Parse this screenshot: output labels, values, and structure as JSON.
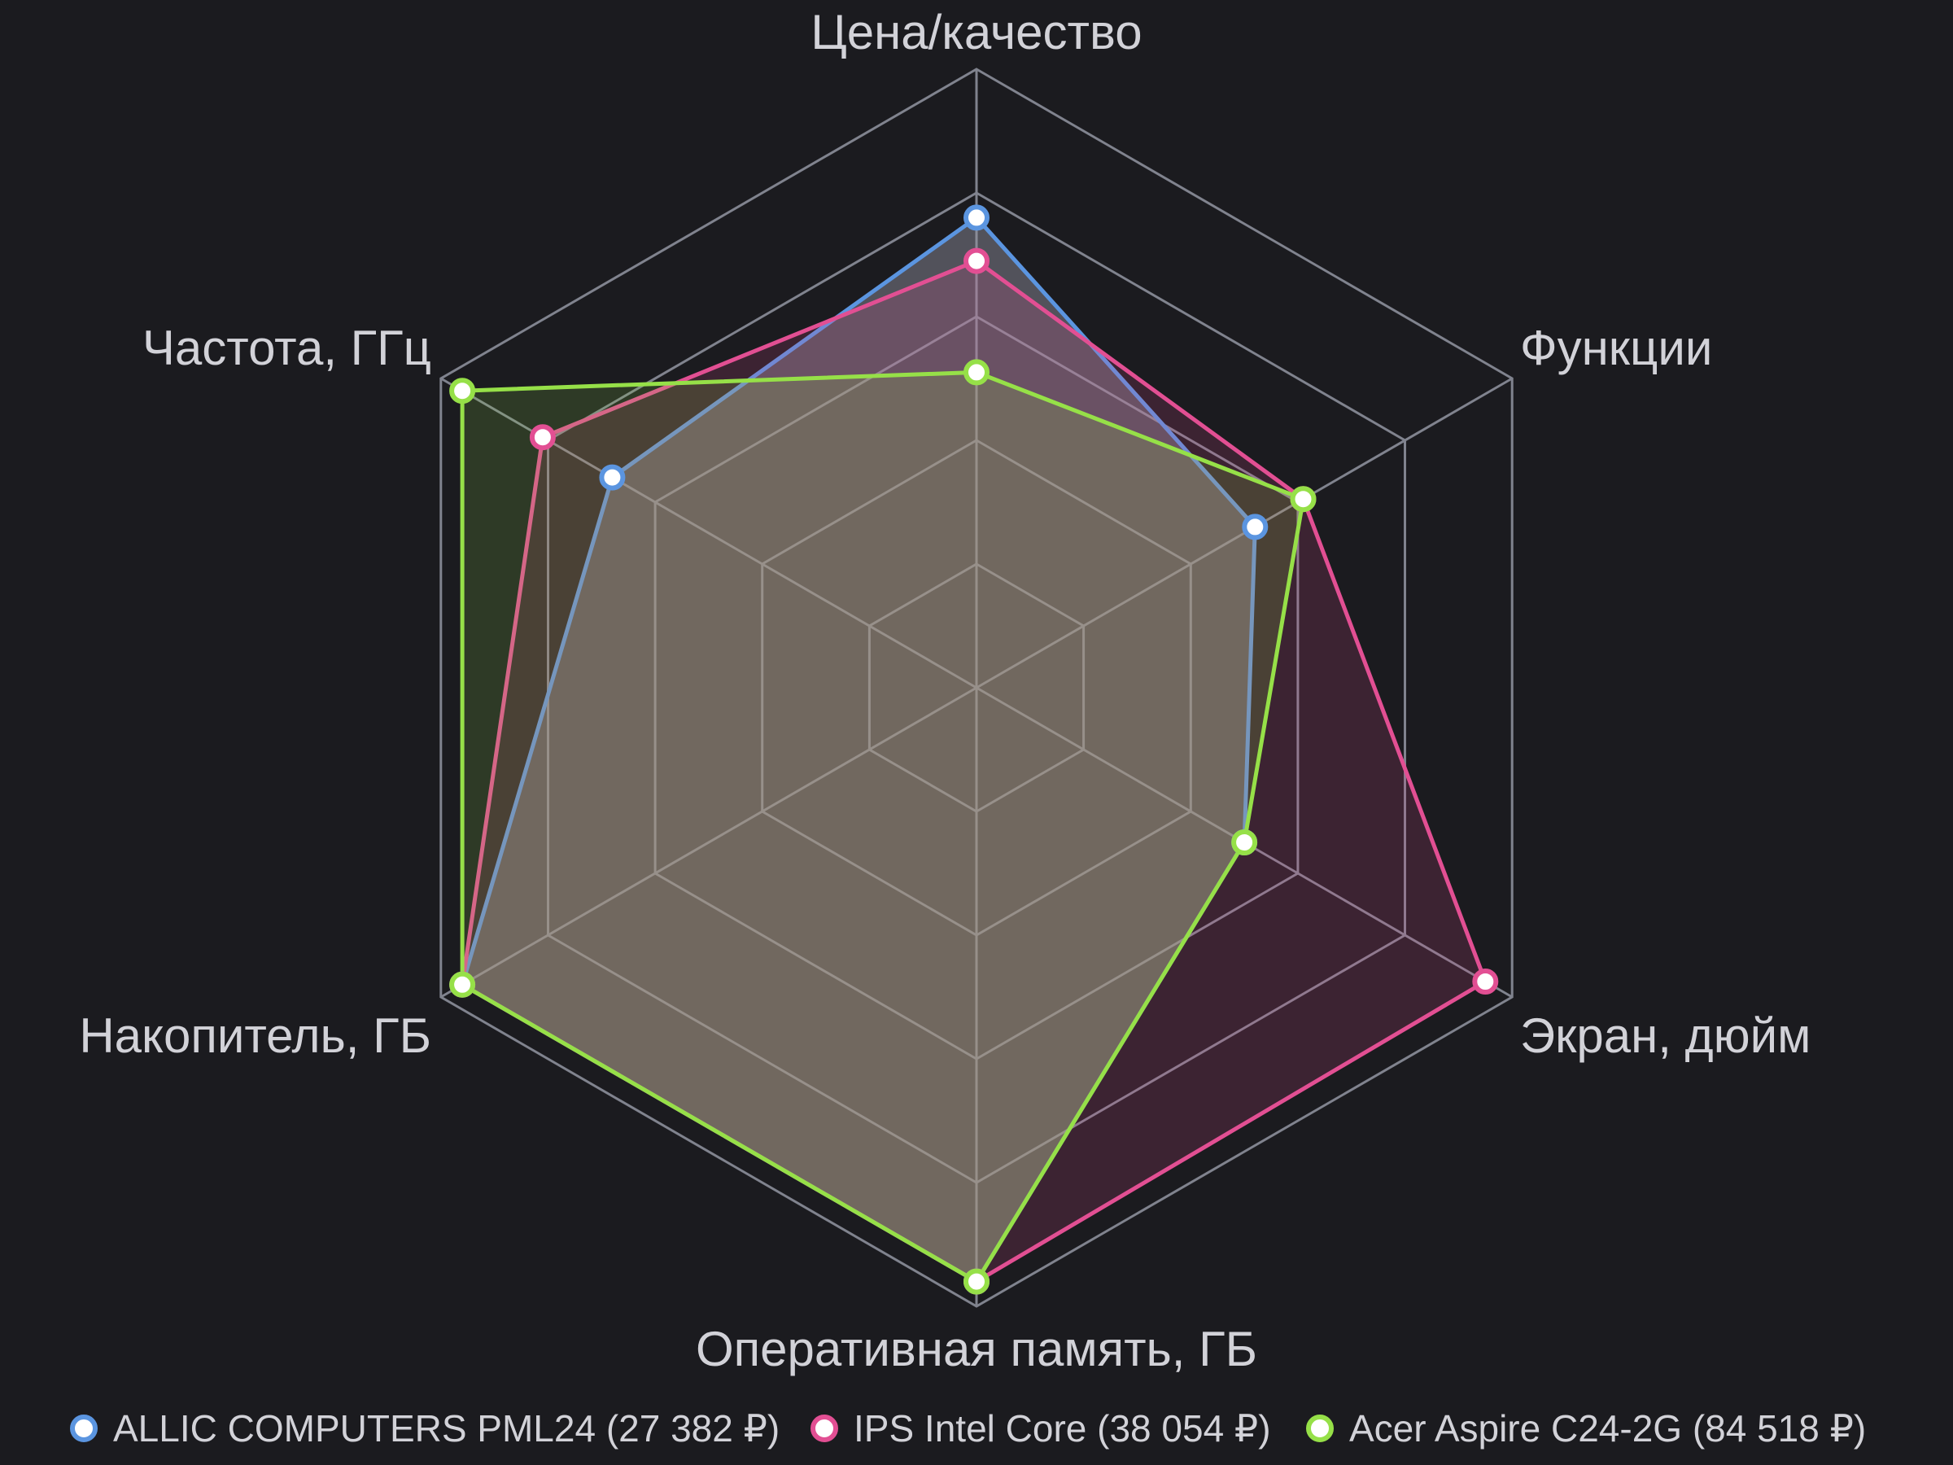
{
  "chart_data": {
    "type": "radar",
    "axes": [
      "Цена/качество",
      "Функции",
      "Экран, дюйм",
      "Оперативная память, ГБ",
      "Накопитель, ГБ",
      "Частота, ГГц"
    ],
    "range": [
      0,
      5
    ],
    "grid": true,
    "legend_position": "bottom",
    "series": [
      {
        "name": "ALLIC COMPUTERS PML24 (27 382 ₽)",
        "color": "#5b95e0",
        "fill": "rgba(150,150,165,0.45)",
        "values": [
          3.8,
          2.6,
          2.5,
          4.8,
          4.8,
          3.4
        ]
      },
      {
        "name": "IPS Intel Core (38 054 ₽)",
        "color": "#e24f93",
        "fill": "rgba(226,79,147,0.17)",
        "values": [
          3.45,
          3.05,
          4.75,
          4.8,
          4.8,
          4.05
        ]
      },
      {
        "name": "Acer Aspire C24-2G (84 518 ₽)",
        "color": "#96e048",
        "fill": "rgba(150,224,72,0.16)",
        "values": [
          2.55,
          3.05,
          2.5,
          4.8,
          4.8,
          4.8
        ]
      }
    ]
  }
}
